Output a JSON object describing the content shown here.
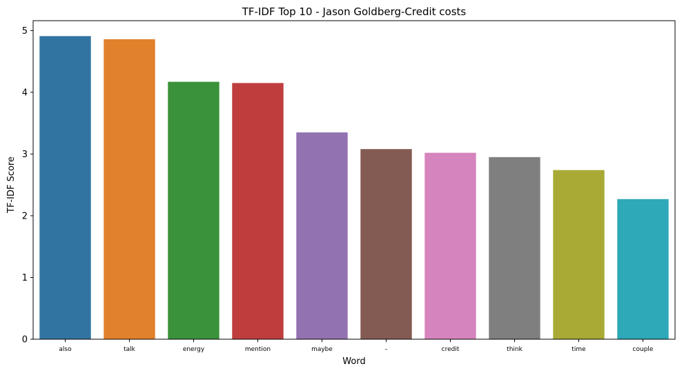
{
  "chart_data": {
    "type": "bar",
    "title": "TF-IDF Top 10 - Jason Goldberg-Credit costs",
    "xlabel": "Word",
    "ylabel": "TF-IDF Score",
    "categories": [
      "also",
      "talk",
      "energy",
      "mention",
      "maybe",
      "–",
      "credit",
      "think",
      "time",
      "couple"
    ],
    "values": [
      4.91,
      4.86,
      4.17,
      4.15,
      3.35,
      3.08,
      3.02,
      2.95,
      2.74,
      2.27
    ],
    "colors": [
      "#3274a1",
      "#e1812c",
      "#3a923a",
      "#c03d3e",
      "#9372b2",
      "#845b53",
      "#d684bd",
      "#7f7f7f",
      "#a9aa35",
      "#2ea9b8"
    ],
    "ylim": [
      0,
      5.16
    ],
    "yticks": [
      0,
      1,
      2,
      3,
      4,
      5
    ],
    "grid": false,
    "legend": "none"
  }
}
